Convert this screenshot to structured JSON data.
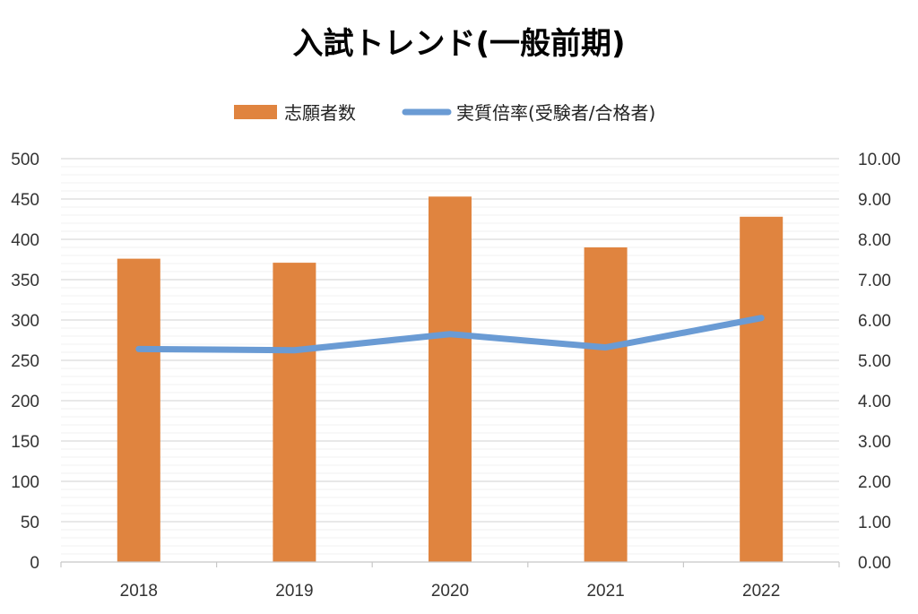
{
  "chart_data": {
    "type": "bar",
    "title": "入試トレンド(一般前期)",
    "categories": [
      "2018",
      "2019",
      "2020",
      "2021",
      "2022"
    ],
    "series": [
      {
        "name": "志願者数",
        "type": "bar",
        "axis": "left",
        "values": [
          376,
          371,
          453,
          390,
          428
        ]
      },
      {
        "name": "実質倍率(受験者/合格者)",
        "type": "line",
        "axis": "right",
        "values": [
          5.28,
          5.25,
          5.65,
          5.32,
          6.05
        ]
      }
    ],
    "y_left": {
      "min": 0,
      "max": 500,
      "step": 50,
      "tick_labels": [
        "0",
        "50",
        "100",
        "150",
        "200",
        "250",
        "300",
        "350",
        "400",
        "450",
        "500"
      ]
    },
    "y_right": {
      "min": 0,
      "max": 10,
      "step": 1,
      "tick_labels": [
        "0.00",
        "1.00",
        "2.00",
        "3.00",
        "4.00",
        "5.00",
        "6.00",
        "7.00",
        "8.00",
        "9.00",
        "10.00"
      ]
    },
    "grid": true,
    "legend_position": "top",
    "colors": {
      "bar": "#e0843f",
      "line": "#6a9bd4"
    }
  }
}
